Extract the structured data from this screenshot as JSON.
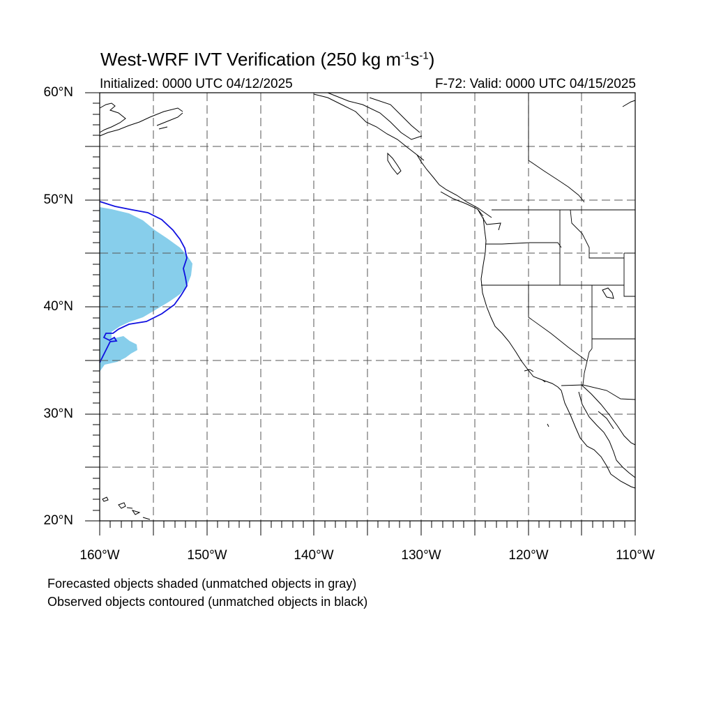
{
  "title": {
    "main": "West-WRF IVT Verification (250 kg m",
    "sup1": "-1",
    "mid": "s",
    "sup2": "-1",
    "end": ")"
  },
  "subtitle": {
    "left": "Initialized: 0000 UTC 04/12/2025",
    "right": "F-72: Valid: 0000 UTC 04/15/2025"
  },
  "map": {
    "lon_range": [
      -160,
      -110
    ],
    "lat_range": [
      20,
      60
    ],
    "lat_labels": [
      "60°N",
      "50°N",
      "40°N",
      "30°N",
      "20°N"
    ],
    "lon_labels": [
      "160°W",
      "150°W",
      "140°W",
      "130°W",
      "120°W",
      "110°W"
    ],
    "grid": "dashed every 5°",
    "forecast_fill_color": "#87CEEB",
    "observed_contour_color": "#1010E0"
  },
  "notes": [
    "Forecasted objects shaded (unmatched objects in gray)",
    "Observed objects contoured (unmatched objects in black)"
  ]
}
